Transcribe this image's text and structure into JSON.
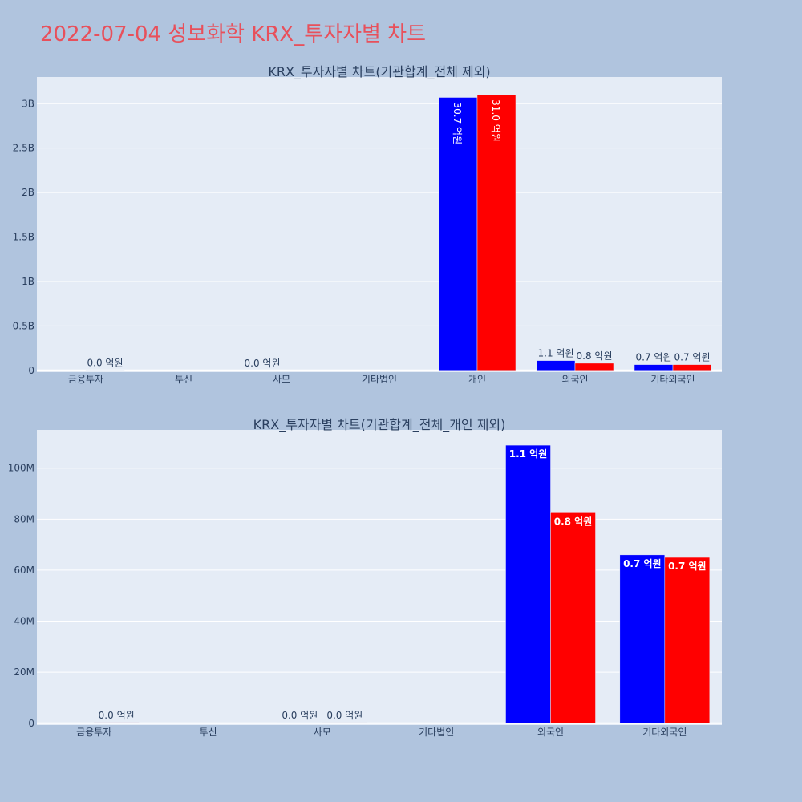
{
  "page": {
    "title": "2022-07-04 성보화학 KRX_투자자별 차트"
  },
  "colors": {
    "background": "#b0c4de",
    "plot_bg": "#e5ecf6",
    "series_1": "#0000ff",
    "series_2": "#ff0000",
    "title": "#e8505b"
  },
  "chart_data": [
    {
      "type": "bar",
      "title": "KRX_투자자별 차트(기관합계_전체 제외)",
      "categories": [
        "금융투자",
        "투신",
        "사모",
        "기타법인",
        "개인",
        "외국인",
        "기타외국인"
      ],
      "yticks": [
        "0",
        "0.5B",
        "1B",
        "1.5B",
        "2B",
        "2.5B",
        "3B"
      ],
      "ytick_values": [
        0,
        500000000,
        1000000000,
        1500000000,
        2000000000,
        2500000000,
        3000000000
      ],
      "ylim": [
        -20000000,
        3300000000
      ],
      "series": [
        {
          "values": [
            0,
            0,
            0,
            0,
            3070000000,
            110000000,
            65000000
          ],
          "labels": [
            "",
            "",
            "0.0 억원",
            "",
            "30.7 억원",
            "1.1 억원",
            "0.7 억원"
          ]
        },
        {
          "values": [
            1000000,
            0,
            0,
            0,
            3100000000,
            80000000,
            65000000
          ],
          "labels": [
            "0.0 억원",
            "",
            "",
            "",
            "31.0 억원",
            "0.8 억원",
            "0.7 억원"
          ]
        }
      ]
    },
    {
      "type": "bar",
      "title": "KRX_투자자별 차트(기관합계_전체_개인 제외)",
      "categories": [
        "금융투자",
        "투신",
        "사모",
        "기타법인",
        "외국인",
        "기타외국인"
      ],
      "yticks": [
        "0",
        "20M",
        "40M",
        "60M",
        "80M",
        "100M"
      ],
      "ytick_values": [
        0,
        20000000,
        40000000,
        60000000,
        80000000,
        100000000
      ],
      "ylim": [
        -700000,
        115000000
      ],
      "series": [
        {
          "values": [
            0,
            0,
            200000,
            0,
            109000000,
            66000000
          ],
          "labels": [
            "",
            "",
            "0.0 억원",
            "",
            "1.1 억원",
            "0.7 억원"
          ]
        },
        {
          "values": [
            300000,
            0,
            250000,
            0,
            82500000,
            65000000
          ],
          "labels": [
            "0.0 억원",
            "",
            "0.0 억원",
            "",
            "0.8 억원",
            "0.7 억원"
          ]
        }
      ]
    }
  ]
}
